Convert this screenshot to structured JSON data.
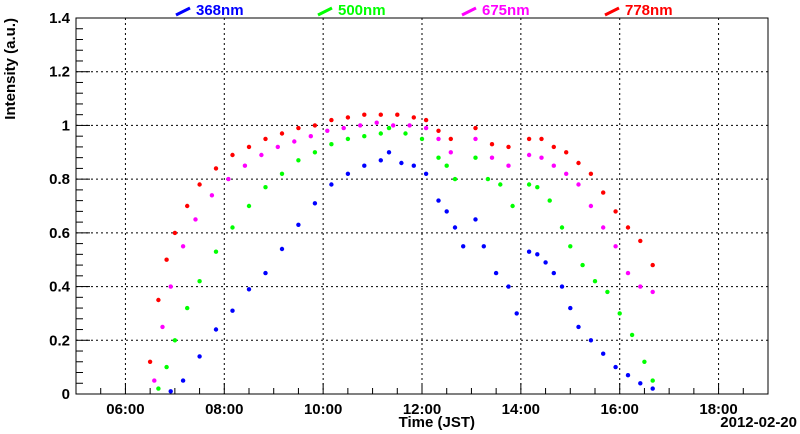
{
  "chart_data": {
    "type": "scatter",
    "title": "",
    "xlabel": "Time (JST)",
    "ylabel": "Intensity (a.u.)",
    "date_label": "2012-02-20",
    "xlim": [
      "05:00",
      "19:00"
    ],
    "ylim": [
      0,
      1.4
    ],
    "grid": true,
    "legend_position": "top",
    "x_ticks": [
      "06:00",
      "08:00",
      "10:00",
      "12:00",
      "14:00",
      "16:00",
      "18:00"
    ],
    "y_ticks": [
      "0",
      "0.2",
      "0.4",
      "0.6",
      "0.8",
      "1",
      "1.2",
      "1.4"
    ],
    "series": [
      {
        "name": "368nm",
        "color": "#0000ff",
        "points": [
          [
            "06:55",
            0.01
          ],
          [
            "07:10",
            0.05
          ],
          [
            "07:30",
            0.14
          ],
          [
            "07:50",
            0.24
          ],
          [
            "08:10",
            0.31
          ],
          [
            "08:30",
            0.39
          ],
          [
            "08:50",
            0.45
          ],
          [
            "09:10",
            0.54
          ],
          [
            "09:30",
            0.63
          ],
          [
            "09:50",
            0.71
          ],
          [
            "10:10",
            0.78
          ],
          [
            "10:30",
            0.82
          ],
          [
            "10:50",
            0.85
          ],
          [
            "11:10",
            0.87
          ],
          [
            "11:20",
            0.9
          ],
          [
            "11:35",
            0.86
          ],
          [
            "11:50",
            0.85
          ],
          [
            "12:05",
            0.82
          ],
          [
            "12:20",
            0.72
          ],
          [
            "12:30",
            0.68
          ],
          [
            "12:40",
            0.62
          ],
          [
            "12:50",
            0.55
          ],
          [
            "13:05",
            0.65
          ],
          [
            "13:15",
            0.55
          ],
          [
            "13:30",
            0.45
          ],
          [
            "13:45",
            0.4
          ],
          [
            "13:55",
            0.3
          ],
          [
            "14:10",
            0.53
          ],
          [
            "14:20",
            0.52
          ],
          [
            "14:30",
            0.49
          ],
          [
            "14:40",
            0.45
          ],
          [
            "14:50",
            0.4
          ],
          [
            "15:00",
            0.32
          ],
          [
            "15:10",
            0.25
          ],
          [
            "15:25",
            0.2
          ],
          [
            "15:40",
            0.15
          ],
          [
            "15:55",
            0.1
          ],
          [
            "16:10",
            0.07
          ],
          [
            "16:25",
            0.04
          ],
          [
            "16:40",
            0.02
          ]
        ]
      },
      {
        "name": "500nm",
        "color": "#00ff00",
        "points": [
          [
            "06:40",
            0.02
          ],
          [
            "06:50",
            0.1
          ],
          [
            "07:00",
            0.2
          ],
          [
            "07:15",
            0.32
          ],
          [
            "07:30",
            0.42
          ],
          [
            "07:50",
            0.53
          ],
          [
            "08:10",
            0.62
          ],
          [
            "08:30",
            0.7
          ],
          [
            "08:50",
            0.77
          ],
          [
            "09:10",
            0.82
          ],
          [
            "09:30",
            0.87
          ],
          [
            "09:50",
            0.9
          ],
          [
            "10:10",
            0.93
          ],
          [
            "10:30",
            0.95
          ],
          [
            "10:50",
            0.96
          ],
          [
            "11:10",
            0.97
          ],
          [
            "11:20",
            0.99
          ],
          [
            "11:40",
            0.97
          ],
          [
            "12:00",
            0.95
          ],
          [
            "12:20",
            0.88
          ],
          [
            "12:30",
            0.85
          ],
          [
            "12:40",
            0.8
          ],
          [
            "13:05",
            0.88
          ],
          [
            "13:20",
            0.8
          ],
          [
            "13:35",
            0.78
          ],
          [
            "13:50",
            0.7
          ],
          [
            "14:10",
            0.78
          ],
          [
            "14:20",
            0.77
          ],
          [
            "14:35",
            0.72
          ],
          [
            "14:50",
            0.62
          ],
          [
            "15:00",
            0.55
          ],
          [
            "15:15",
            0.48
          ],
          [
            "15:30",
            0.42
          ],
          [
            "15:45",
            0.38
          ],
          [
            "16:00",
            0.3
          ],
          [
            "16:15",
            0.22
          ],
          [
            "16:30",
            0.12
          ],
          [
            "16:40",
            0.05
          ]
        ]
      },
      {
        "name": "675nm",
        "color": "#ff00ff",
        "points": [
          [
            "06:35",
            0.05
          ],
          [
            "06:45",
            0.25
          ],
          [
            "06:55",
            0.4
          ],
          [
            "07:10",
            0.55
          ],
          [
            "07:25",
            0.65
          ],
          [
            "07:45",
            0.74
          ],
          [
            "08:05",
            0.8
          ],
          [
            "08:25",
            0.85
          ],
          [
            "08:45",
            0.89
          ],
          [
            "09:05",
            0.92
          ],
          [
            "09:25",
            0.94
          ],
          [
            "09:45",
            0.96
          ],
          [
            "10:05",
            0.98
          ],
          [
            "10:25",
            0.99
          ],
          [
            "10:45",
            1.0
          ],
          [
            "11:05",
            1.01
          ],
          [
            "11:25",
            1.0
          ],
          [
            "11:45",
            1.0
          ],
          [
            "12:05",
            0.99
          ],
          [
            "12:20",
            0.95
          ],
          [
            "12:35",
            0.9
          ],
          [
            "13:05",
            0.95
          ],
          [
            "13:25",
            0.88
          ],
          [
            "13:45",
            0.85
          ],
          [
            "14:10",
            0.89
          ],
          [
            "14:25",
            0.88
          ],
          [
            "14:40",
            0.85
          ],
          [
            "14:55",
            0.82
          ],
          [
            "15:10",
            0.78
          ],
          [
            "15:25",
            0.7
          ],
          [
            "15:40",
            0.62
          ],
          [
            "15:55",
            0.55
          ],
          [
            "16:10",
            0.45
          ],
          [
            "16:25",
            0.4
          ],
          [
            "16:40",
            0.38
          ]
        ]
      },
      {
        "name": "778nm",
        "color": "#ff0000",
        "points": [
          [
            "06:30",
            0.12
          ],
          [
            "06:40",
            0.35
          ],
          [
            "06:50",
            0.5
          ],
          [
            "07:00",
            0.6
          ],
          [
            "07:15",
            0.7
          ],
          [
            "07:30",
            0.78
          ],
          [
            "07:50",
            0.84
          ],
          [
            "08:10",
            0.89
          ],
          [
            "08:30",
            0.92
          ],
          [
            "08:50",
            0.95
          ],
          [
            "09:10",
            0.97
          ],
          [
            "09:30",
            0.99
          ],
          [
            "09:50",
            1.0
          ],
          [
            "10:10",
            1.02
          ],
          [
            "10:30",
            1.03
          ],
          [
            "10:50",
            1.04
          ],
          [
            "11:10",
            1.04
          ],
          [
            "11:30",
            1.04
          ],
          [
            "11:50",
            1.03
          ],
          [
            "12:05",
            1.02
          ],
          [
            "12:20",
            0.98
          ],
          [
            "12:35",
            0.95
          ],
          [
            "13:05",
            0.99
          ],
          [
            "13:25",
            0.93
          ],
          [
            "13:45",
            0.92
          ],
          [
            "14:10",
            0.95
          ],
          [
            "14:25",
            0.95
          ],
          [
            "14:40",
            0.92
          ],
          [
            "14:55",
            0.9
          ],
          [
            "15:10",
            0.86
          ],
          [
            "15:25",
            0.82
          ],
          [
            "15:40",
            0.75
          ],
          [
            "15:55",
            0.68
          ],
          [
            "16:10",
            0.62
          ],
          [
            "16:25",
            0.57
          ],
          [
            "16:40",
            0.48
          ]
        ]
      }
    ]
  }
}
